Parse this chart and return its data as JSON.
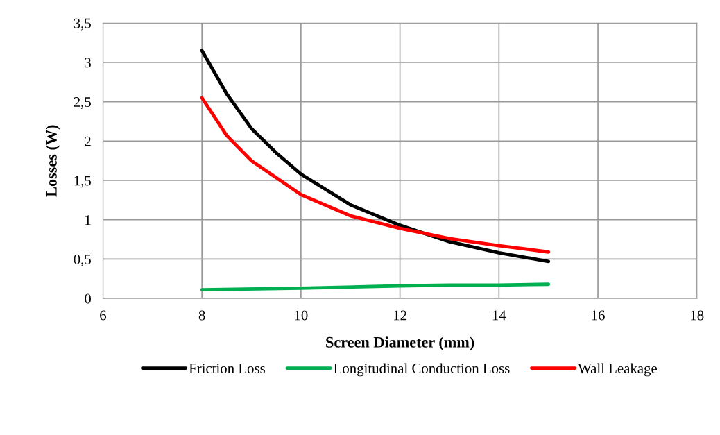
{
  "chart_data": {
    "type": "line",
    "xlabel": "Screen Diameter (mm)",
    "ylabel": "Losses (W)",
    "xlim": [
      6,
      18
    ],
    "xticks": [
      6,
      8,
      10,
      12,
      14,
      16,
      18
    ],
    "ylim": [
      0,
      3.5
    ],
    "yticks": [
      0,
      {
        "value": 0.5,
        "label": "0,5"
      },
      1,
      {
        "value": 1.5,
        "label": "1,5"
      },
      2,
      {
        "value": 2.5,
        "label": "2,5"
      },
      3,
      {
        "value": 3.5,
        "label": "3,5"
      }
    ],
    "grid": true,
    "legend": "bottom",
    "marker": "none",
    "line_style": "solid",
    "series": [
      {
        "name": "Friction Loss",
        "color": "#000000",
        "x": [
          8,
          8.5,
          9,
          9.5,
          10,
          11,
          12,
          13,
          14,
          15
        ],
        "values": [
          3.15,
          2.6,
          2.16,
          1.85,
          1.58,
          1.19,
          0.93,
          0.72,
          0.58,
          0.47
        ]
      },
      {
        "name": "Longitudinal Conduction Loss",
        "color": "#00b050",
        "x": [
          8,
          10,
          12,
          13,
          14,
          15
        ],
        "values": [
          0.11,
          0.13,
          0.16,
          0.17,
          0.17,
          0.18
        ]
      },
      {
        "name": "Wall Leakage",
        "color": "#ff0000",
        "x": [
          8,
          8.5,
          9,
          10,
          11,
          12,
          13,
          14,
          15
        ],
        "values": [
          2.55,
          2.07,
          1.75,
          1.32,
          1.05,
          0.89,
          0.76,
          0.67,
          0.59
        ]
      }
    ]
  }
}
